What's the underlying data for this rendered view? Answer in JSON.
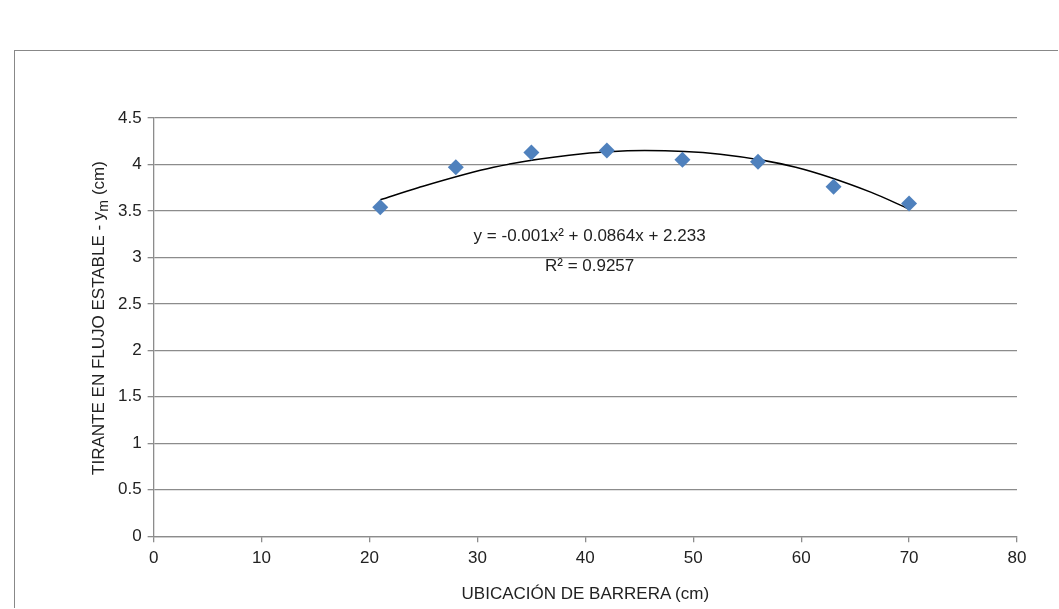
{
  "chart_data": {
    "type": "scatter",
    "xlabel": "UBICACIÓN DE BARRERA (cm)",
    "ylabel": "TIRANTE EN FLUJO ESTABLE - y$_{m}$ (cm)",
    "xlim": [
      0,
      80
    ],
    "xticks": [
      0,
      10,
      20,
      30,
      40,
      50,
      60,
      70,
      80
    ],
    "ylim": [
      0,
      4.5
    ],
    "yticks": [
      0,
      0.5,
      1,
      1.5,
      2,
      2.5,
      3,
      3.5,
      4,
      4.5
    ],
    "grid": "y",
    "legend": false,
    "series": [
      {
        "type": "scatter",
        "color": "#4f81bd",
        "marker": "diamond",
        "x": [
          21,
          28,
          35,
          42,
          49,
          56,
          63,
          70
        ],
        "values": [
          3.54,
          3.97,
          4.13,
          4.15,
          4.05,
          4.03,
          3.76,
          3.58
        ]
      },
      {
        "type": "line",
        "color": "#000000",
        "marker": "none",
        "line_style": "solid",
        "x": [
          21,
          24.5,
          31.5,
          38.5,
          45.5,
          52.5,
          59.5,
          66.5,
          70
        ],
        "values": [
          3.62,
          3.75,
          3.97,
          4.1,
          4.15,
          4.11,
          3.97,
          3.7,
          3.52
        ]
      }
    ],
    "annotations": [
      "y = -0.001x² + 0.0864x + 2.233",
      "R² = 0.9257"
    ]
  }
}
